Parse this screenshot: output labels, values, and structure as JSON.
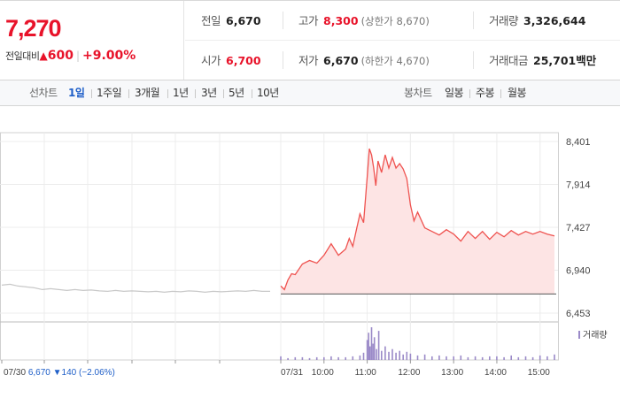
{
  "summary": {
    "current_price": "7,270",
    "change_label": "전일대비",
    "change_symbol": "▲",
    "change_value": "600",
    "change_rate": "+9.00%",
    "prev_close": {
      "label": "전일",
      "value": "6,670"
    },
    "open": {
      "label": "시가",
      "value": "6,700"
    },
    "high": {
      "label": "고가",
      "value": "8,300",
      "sub": "(상한가 8,670)"
    },
    "low": {
      "label": "저가",
      "value": "6,670",
      "sub": "(하한가 4,670)"
    },
    "volume": {
      "label": "거래량",
      "value": "3,326,644"
    },
    "amount": {
      "label": "거래대금",
      "value": "25,701",
      "unit": "백만"
    }
  },
  "tabs": {
    "line_label": "선차트",
    "line_items": [
      "1일",
      "1주일",
      "3개월",
      "1년",
      "3년",
      "5년",
      "10년"
    ],
    "active_index": 0,
    "candle_label": "봉차트",
    "candle_items": [
      "일봉",
      "주봉",
      "월봉"
    ]
  },
  "colors": {
    "up": "#e8132a",
    "prev_day_line": "#c8c8c8",
    "today_line": "#ef5350",
    "today_fill": "#fde4e4",
    "volume_bar": "#9b8ac8",
    "down": "#1f5fc8"
  },
  "chart_data": {
    "type": "line",
    "y_ticks": [
      "8,401",
      "7,914",
      "7,427",
      "6,940",
      "6,453"
    ],
    "ylim": [
      6453,
      8401
    ],
    "x_ticks": [
      "07/30",
      "07/31",
      "10:00",
      "11:00",
      "12:00",
      "13:00",
      "14:00",
      "15:00"
    ],
    "prev_day": {
      "date": "07/30",
      "close": "6,670",
      "change_symbol": "▼",
      "change": "140",
      "change_rate": "(−2.06%)",
      "values": [
        6770,
        6780,
        6760,
        6750,
        6740,
        6720,
        6730,
        6720,
        6710,
        6720,
        6710,
        6715,
        6705,
        6700,
        6710,
        6700,
        6705,
        6700,
        6695,
        6700,
        6690,
        6700,
        6695,
        6705,
        6700,
        6690,
        6700,
        6695,
        6700,
        6705,
        6700,
        6710,
        6700,
        6700
      ]
    },
    "today": {
      "date": "07/31",
      "base": 6670,
      "time": [
        "09:00",
        "09:05",
        "09:10",
        "09:15",
        "09:20",
        "09:30",
        "09:40",
        "09:50",
        "10:00",
        "10:10",
        "10:20",
        "10:30",
        "10:35",
        "10:40",
        "10:45",
        "10:50",
        "10:55",
        "11:00",
        "11:03",
        "11:06",
        "11:09",
        "11:12",
        "11:15",
        "11:20",
        "11:25",
        "11:30",
        "11:35",
        "11:40",
        "11:45",
        "11:50",
        "11:55",
        "12:00",
        "12:05",
        "12:10",
        "12:20",
        "12:30",
        "12:40",
        "12:50",
        "13:00",
        "13:10",
        "13:20",
        "13:30",
        "13:40",
        "13:50",
        "14:00",
        "14:10",
        "14:20",
        "14:30",
        "14:40",
        "14:50",
        "15:00",
        "15:10",
        "15:20"
      ],
      "values": [
        6760,
        6720,
        6830,
        6900,
        6890,
        7010,
        7050,
        7020,
        7110,
        7240,
        7110,
        7180,
        7300,
        7210,
        7400,
        7580,
        7480,
        8000,
        8320,
        8250,
        8100,
        7900,
        8180,
        8050,
        8250,
        8100,
        8220,
        8100,
        8150,
        8090,
        7980,
        7680,
        7500,
        7600,
        7420,
        7380,
        7340,
        7400,
        7350,
        7270,
        7380,
        7300,
        7380,
        7290,
        7370,
        7320,
        7390,
        7340,
        7380,
        7350,
        7380,
        7350,
        7330
      ]
    },
    "volume_legend": "거래량",
    "volume": {
      "time": [
        "09:00",
        "09:10",
        "09:20",
        "09:30",
        "09:40",
        "09:50",
        "10:00",
        "10:10",
        "10:20",
        "10:30",
        "10:40",
        "10:50",
        "10:55",
        "11:00",
        "11:02",
        "11:04",
        "11:06",
        "11:08",
        "11:10",
        "11:13",
        "11:16",
        "11:20",
        "11:25",
        "11:30",
        "11:35",
        "11:40",
        "11:45",
        "11:50",
        "11:55",
        "12:00",
        "12:10",
        "12:20",
        "12:30",
        "12:40",
        "12:50",
        "13:00",
        "13:10",
        "13:20",
        "13:30",
        "13:40",
        "13:50",
        "14:00",
        "14:10",
        "14:20",
        "14:30",
        "14:40",
        "14:50",
        "15:00",
        "15:10",
        "15:20"
      ],
      "values": [
        4,
        2,
        3,
        3,
        2,
        3,
        3,
        4,
        3,
        3,
        4,
        5,
        8,
        22,
        30,
        15,
        36,
        18,
        25,
        12,
        32,
        10,
        15,
        9,
        12,
        8,
        10,
        6,
        9,
        7,
        5,
        6,
        4,
        5,
        4,
        4,
        5,
        3,
        4,
        3,
        4,
        4,
        3,
        5,
        3,
        4,
        3,
        5,
        4,
        6
      ]
    }
  }
}
